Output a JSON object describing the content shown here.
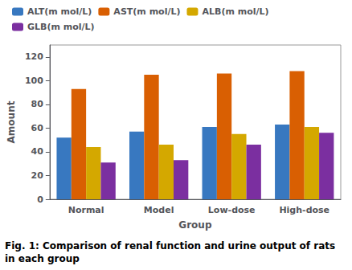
{
  "chart_data": {
    "type": "bar",
    "title": "Fig. 1: Comparison of renal function and urine output of rats\nin each group",
    "xlabel": "Group",
    "ylabel": "Amount",
    "categories": [
      "Normal",
      "Model",
      "Low-dose",
      "High-dose"
    ],
    "series": [
      {
        "name": "ALT(m mol/L)",
        "color": "#3878c0",
        "values": [
          52,
          57,
          61,
          63
        ]
      },
      {
        "name": "AST(m mol/L)",
        "color": "#d95f02",
        "values": [
          93,
          105,
          106,
          108
        ]
      },
      {
        "name": "ALB(m mol/L)",
        "color": "#d4a800",
        "values": [
          44,
          46,
          55,
          61
        ]
      },
      {
        "name": "GLB(m mol/L)",
        "color": "#7b2fa0",
        "values": [
          31,
          33,
          46,
          56
        ]
      }
    ],
    "ylim": [
      0,
      130
    ],
    "yticks": [
      0,
      20,
      40,
      60,
      80,
      100,
      120
    ],
    "grid": false,
    "legend": "upper left"
  }
}
